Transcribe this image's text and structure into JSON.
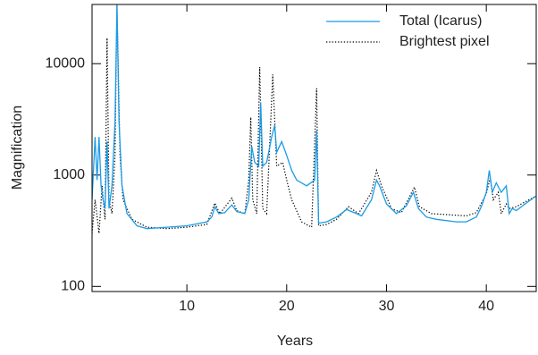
{
  "chart_data": {
    "type": "line",
    "x_label": "Years",
    "y_label": "Magnification",
    "log_y": true,
    "xlim": [
      0.5,
      45
    ],
    "ylim": [
      90,
      34000
    ],
    "xticks": [
      10,
      20,
      30,
      40
    ],
    "yticks": [
      100,
      1000,
      10000
    ],
    "legend": "upper right",
    "series": [
      {
        "name": "Total (Icarus)",
        "color": "#1a9be6",
        "linestyle": "solid",
        "x": [
          0.5,
          0.8,
          1.0,
          1.2,
          1.4,
          1.6,
          1.8,
          2.0,
          2.2,
          2.5,
          2.8,
          3.0,
          3.2,
          3.5,
          4.0,
          5.0,
          6.0,
          8.0,
          10.0,
          12.0,
          12.5,
          12.8,
          13.2,
          13.8,
          14.5,
          15.0,
          15.8,
          16.2,
          16.5,
          16.8,
          17.2,
          17.4,
          17.6,
          18.0,
          18.5,
          18.8,
          19.0,
          19.5,
          20.0,
          20.5,
          21.0,
          22.0,
          22.8,
          23.0,
          23.2,
          24.0,
          25.0,
          26.0,
          27.0,
          27.5,
          28.5,
          29.0,
          29.3,
          30.0,
          31.0,
          32.0,
          32.7,
          33.2,
          34.0,
          35.0,
          37.0,
          38.0,
          39.0,
          39.5,
          40.0,
          40.3,
          40.6,
          41.0,
          41.5,
          42.0,
          42.3,
          42.6,
          43.0,
          44.0,
          45.0
        ],
        "values": [
          600,
          2200,
          900,
          2200,
          800,
          600,
          500,
          2000,
          500,
          800,
          3000,
          34000,
          3000,
          800,
          450,
          350,
          330,
          340,
          350,
          380,
          420,
          520,
          450,
          460,
          540,
          470,
          450,
          600,
          1800,
          1300,
          1200,
          4500,
          1200,
          1300,
          2200,
          2800,
          1600,
          2000,
          1500,
          1100,
          900,
          800,
          900,
          2500,
          370,
          380,
          420,
          490,
          450,
          430,
          600,
          900,
          800,
          550,
          450,
          530,
          700,
          500,
          420,
          400,
          380,
          380,
          420,
          520,
          700,
          1100,
          700,
          850,
          700,
          800,
          450,
          500,
          480,
          560,
          650
        ]
      },
      {
        "name": "Brightest pixel",
        "color": "#000000",
        "linestyle": "dotted",
        "x": [
          0.5,
          0.8,
          1.2,
          1.5,
          1.8,
          2.0,
          2.2,
          2.5,
          2.8,
          3.0,
          3.3,
          3.6,
          4.5,
          6.0,
          8.0,
          10.0,
          12.0,
          12.8,
          13.3,
          14.5,
          15.0,
          15.8,
          16.2,
          16.4,
          16.6,
          17.0,
          17.3,
          17.6,
          18.0,
          18.6,
          19.0,
          19.6,
          20.0,
          20.5,
          21.5,
          22.5,
          23.0,
          23.2,
          24.0,
          25.0,
          26.2,
          27.2,
          28.5,
          29.0,
          29.5,
          30.5,
          31.5,
          32.8,
          33.3,
          34.5,
          38.0,
          39.0,
          40.0,
          40.4,
          40.7,
          41.2,
          41.5,
          42.0,
          42.3,
          43.0,
          45.0
        ],
        "values": [
          300,
          600,
          300,
          800,
          400,
          17000,
          600,
          450,
          1500,
          34000,
          1500,
          600,
          400,
          340,
          330,
          340,
          360,
          560,
          450,
          620,
          480,
          450,
          900,
          3300,
          600,
          450,
          9300,
          500,
          450,
          8000,
          1200,
          1300,
          900,
          600,
          380,
          340,
          6000,
          350,
          360,
          400,
          520,
          450,
          700,
          1100,
          800,
          500,
          460,
          780,
          520,
          450,
          430,
          460,
          680,
          950,
          600,
          700,
          450,
          550,
          500,
          520,
          650
        ]
      }
    ]
  }
}
